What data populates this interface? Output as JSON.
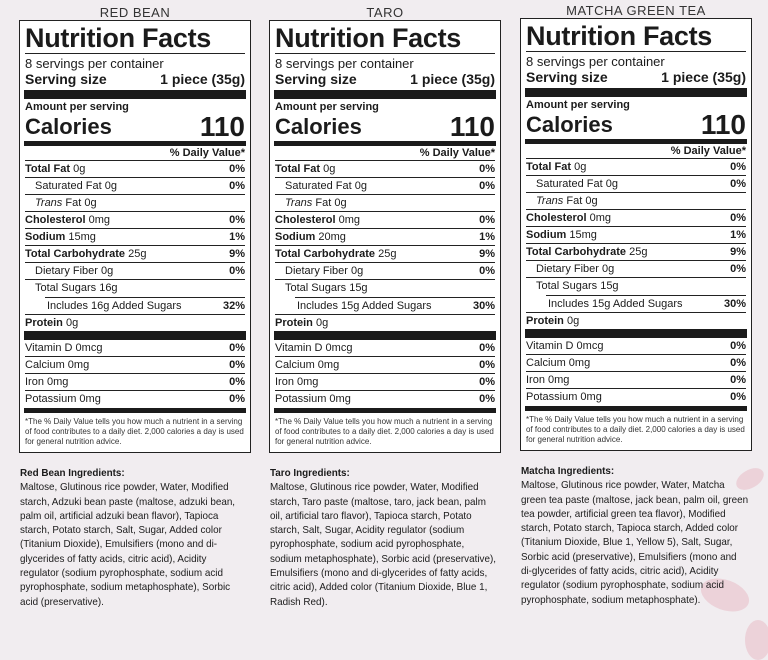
{
  "labels": [
    {
      "flavor": "RED BEAN",
      "title": "Nutrition Facts",
      "servings": "8 servings per container",
      "serving_size_label": "Serving size",
      "serving_size_value": "1 piece (35g)",
      "amount_per_serving": "Amount per serving",
      "calories_label": "Calories",
      "calories_value": "110",
      "dv_header": "% Daily Value*",
      "total_fat": {
        "label": "Total Fat",
        "amount": "0g",
        "dv": "0%"
      },
      "sat_fat": {
        "label": "Saturated Fat",
        "amount": "0g",
        "dv": "0%"
      },
      "trans_fat": {
        "label": "Trans",
        "rest": "Fat 0g"
      },
      "cholesterol": {
        "label": "Cholesterol",
        "amount": "0mg",
        "dv": "0%"
      },
      "sodium": {
        "label": "Sodium",
        "amount": "15mg",
        "dv": "1%"
      },
      "total_carb": {
        "label": "Total Carbohydrate",
        "amount": "25g",
        "dv": "9%"
      },
      "fiber": {
        "label": "Dietary Fiber",
        "amount": "0g",
        "dv": "0%"
      },
      "sugars": {
        "text": "Total Sugars 16g"
      },
      "added_sugars": {
        "text": "Includes 16g Added Sugars",
        "dv": "32%"
      },
      "protein": {
        "label": "Protein",
        "amount": "0g"
      },
      "vit_d": {
        "text": "Vitamin D 0mcg",
        "dv": "0%"
      },
      "calcium": {
        "text": "Calcium 0mg",
        "dv": "0%"
      },
      "iron": {
        "text": "Iron 0mg",
        "dv": "0%"
      },
      "potassium": {
        "text": "Potassium 0mg",
        "dv": "0%"
      },
      "footnote": "*The % Daily Value tells you how much a nutrient in a serving of food contributes to a daily diet. 2,000 calories a day is used for general nutrition advice.",
      "ingredients_heading": "Red Bean Ingredients:",
      "ingredients": "Maltose, Glutinous rice powder, Water, Modified starch, Adzuki bean paste (maltose, adzuki bean, palm oil, artificial adzuki bean flavor), Tapioca starch, Potato starch, Salt, Sugar, Added color (Titanium Dioxide), Emulsifiers (mono and di-glycerides of fatty acids, citric acid), Acidity regulator (sodium pyrophosphate, sodium acid pyrophosphate, sodium metaphosphate), Sorbic acid (preservative)."
    },
    {
      "flavor": "TARO",
      "title": "Nutrition Facts",
      "servings": "8 servings per container",
      "serving_size_label": "Serving size",
      "serving_size_value": "1 piece (35g)",
      "amount_per_serving": "Amount per serving",
      "calories_label": "Calories",
      "calories_value": "110",
      "dv_header": "% Daily Value*",
      "total_fat": {
        "label": "Total Fat",
        "amount": "0g",
        "dv": "0%"
      },
      "sat_fat": {
        "label": "Saturated Fat",
        "amount": "0g",
        "dv": "0%"
      },
      "trans_fat": {
        "label": "Trans",
        "rest": "Fat 0g"
      },
      "cholesterol": {
        "label": "Cholesterol",
        "amount": "0mg",
        "dv": "0%"
      },
      "sodium": {
        "label": "Sodium",
        "amount": "20mg",
        "dv": "1%"
      },
      "total_carb": {
        "label": "Total Carbohydrate",
        "amount": "25g",
        "dv": "9%"
      },
      "fiber": {
        "label": "Dietary Fiber",
        "amount": "0g",
        "dv": "0%"
      },
      "sugars": {
        "text": "Total Sugars 15g"
      },
      "added_sugars": {
        "text": "Includes 15g Added Sugars",
        "dv": "30%"
      },
      "protein": {
        "label": "Protein",
        "amount": "0g"
      },
      "vit_d": {
        "text": "Vitamin D 0mcg",
        "dv": "0%"
      },
      "calcium": {
        "text": "Calcium 0mg",
        "dv": "0%"
      },
      "iron": {
        "text": "Iron 0mg",
        "dv": "0%"
      },
      "potassium": {
        "text": "Potassium 0mg",
        "dv": "0%"
      },
      "footnote": "*The % Daily Value tells you how much a nutrient in a serving of food contributes to a daily diet. 2,000 calories a day is used for general nutrition advice.",
      "ingredients_heading": "Taro Ingredients:",
      "ingredients": "Maltose, Glutinous rice powder, Water, Modified starch, Taro paste (maltose, taro, jack bean, palm oil, artificial taro flavor), Tapioca starch, Potato starch, Salt, Sugar, Acidity regulator (sodium pyrophosphate, sodium acid pyrophosphate, sodium metaphosphate), Sorbic acid (preservative), Emulsifiers (mono and di-glycerides of fatty acids, citric acid), Added color (Titanium Dioxide, Blue 1, Radish Red)."
    },
    {
      "flavor": "MATCHA GREEN TEA",
      "title": "Nutrition Facts",
      "servings": "8 servings per container",
      "serving_size_label": "Serving size",
      "serving_size_value": "1 piece (35g)",
      "amount_per_serving": "Amount per serving",
      "calories_label": "Calories",
      "calories_value": "110",
      "dv_header": "% Daily Value*",
      "total_fat": {
        "label": "Total Fat",
        "amount": "0g",
        "dv": "0%"
      },
      "sat_fat": {
        "label": "Saturated Fat",
        "amount": "0g",
        "dv": "0%"
      },
      "trans_fat": {
        "label": "Trans",
        "rest": "Fat 0g"
      },
      "cholesterol": {
        "label": "Cholesterol",
        "amount": "0mg",
        "dv": "0%"
      },
      "sodium": {
        "label": "Sodium",
        "amount": "15mg",
        "dv": "1%"
      },
      "total_carb": {
        "label": "Total Carbohydrate",
        "amount": "25g",
        "dv": "9%"
      },
      "fiber": {
        "label": "Dietary Fiber",
        "amount": "0g",
        "dv": "0%"
      },
      "sugars": {
        "text": "Total Sugars 15g"
      },
      "added_sugars": {
        "text": "Includes 15g Added Sugars",
        "dv": "30%"
      },
      "protein": {
        "label": "Protein",
        "amount": "0g"
      },
      "vit_d": {
        "text": "Vitamin D 0mcg",
        "dv": "0%"
      },
      "calcium": {
        "text": "Calcium 0mg",
        "dv": "0%"
      },
      "iron": {
        "text": "Iron 0mg",
        "dv": "0%"
      },
      "potassium": {
        "text": "Potassium 0mg",
        "dv": "0%"
      },
      "footnote": "*The % Daily Value tells you how much a nutrient in a serving of food contributes to a daily diet. 2,000 calories a day is used for general nutrition advice.",
      "ingredients_heading": "Matcha Ingredients:",
      "ingredients": "Maltose, Glutinous rice powder, Water, Matcha green tea paste (maltose, jack bean, palm oil, green tea powder, artificial green tea flavor), Modified starch, Potato starch, Tapioca starch, Added color (Titanium Dioxide, Blue 1, Yellow 5), Salt, Sugar, Sorbic acid (preservative), Emulsifiers (mono and di-glycerides of fatty acids, citric acid), Acidity regulator (sodium pyrophosphate, sodium acid pyrophosphate, sodium metaphosphate)."
    }
  ]
}
